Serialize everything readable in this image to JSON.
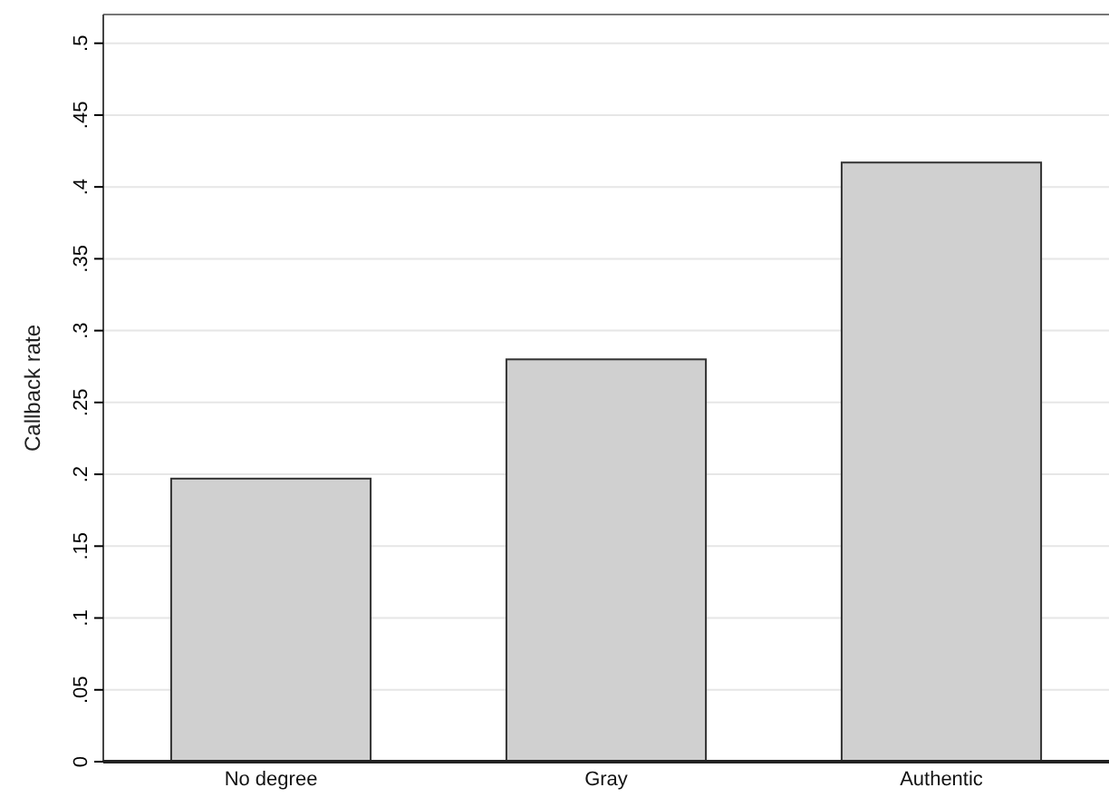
{
  "chart_data": {
    "type": "bar",
    "ylabel": "Callback rate",
    "categories": [
      "No degree",
      "Gray",
      "Authentic"
    ],
    "values": [
      0.197,
      0.28,
      0.417
    ],
    "color": "#d0d0d0",
    "ylim": [
      0,
      0.52
    ],
    "yticks": [
      0,
      {
        "value": 0.05,
        "label": ".05"
      },
      {
        "value": 0.1,
        "label": ".1"
      },
      {
        "value": 0.15,
        "label": ".15"
      },
      {
        "value": 0.2,
        "label": ".2"
      },
      {
        "value": 0.25,
        "label": ".25"
      },
      {
        "value": 0.3,
        "label": ".3"
      },
      {
        "value": 0.35,
        "label": ".35"
      },
      {
        "value": 0.4,
        "label": ".4"
      },
      {
        "value": 0.45,
        "label": ".45"
      },
      {
        "value": 0.5,
        "label": ".5"
      }
    ],
    "grid": "y"
  }
}
